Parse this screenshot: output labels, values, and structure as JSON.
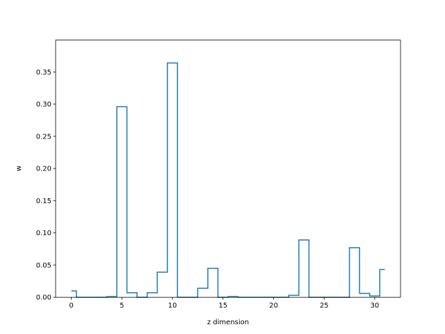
{
  "chart_data": {
    "type": "line",
    "step": "mid",
    "title": "",
    "xlabel": "z dimension",
    "ylabel": "w",
    "xlim": [
      -1.55,
      32.55
    ],
    "ylim": [
      0.0,
      0.3995
    ],
    "xticks": [
      0,
      5,
      10,
      15,
      20,
      25,
      30
    ],
    "yticks": [
      0.0,
      0.05,
      0.1,
      0.15,
      0.2,
      0.25,
      0.3,
      0.35
    ],
    "xtick_labels": [
      "0",
      "5",
      "10",
      "15",
      "20",
      "25",
      "30"
    ],
    "ytick_labels": [
      "0.00",
      "0.05",
      "0.10",
      "0.15",
      "0.20",
      "0.25",
      "0.30",
      "0.35"
    ],
    "grid": false,
    "color": "#1f77b4",
    "x": [
      0,
      1,
      2,
      3,
      4,
      5,
      6,
      7,
      8,
      9,
      10,
      11,
      12,
      13,
      14,
      15,
      16,
      17,
      18,
      19,
      20,
      21,
      22,
      23,
      24,
      25,
      26,
      27,
      28,
      29,
      30,
      31
    ],
    "y": [
      0.01,
      0.0,
      0.0,
      0.0,
      0.001,
      0.296,
      0.007,
      0.0,
      0.007,
      0.039,
      0.364,
      0.0,
      0.0,
      0.014,
      0.045,
      0.0,
      0.001,
      0.0,
      0.0,
      0.0,
      0.0,
      0.0,
      0.003,
      0.089,
      0.0,
      0.0,
      0.0,
      0.0,
      0.077,
      0.006,
      0.002,
      0.043
    ]
  }
}
